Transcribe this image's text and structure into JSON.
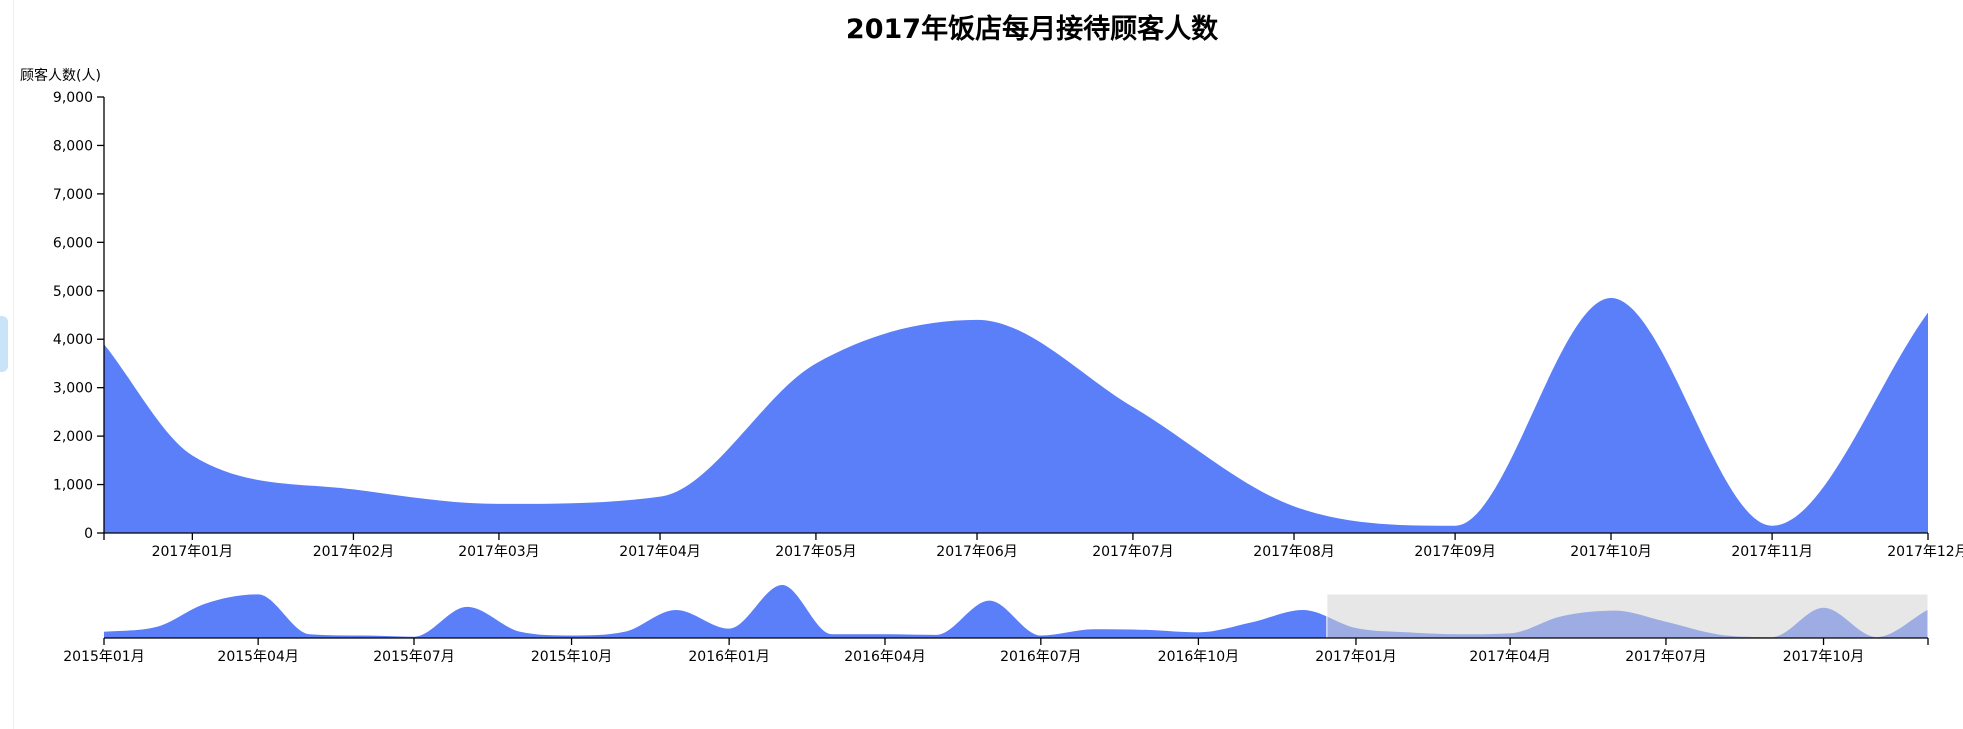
{
  "colors": {
    "area": "#5b7ff8",
    "brush": "#d3d3d3",
    "axis": "#000000"
  },
  "chart_data": [
    {
      "type": "area",
      "title": "2017年饭店每月接待顾客人数",
      "ylabel": "顾客人数(人)",
      "xlabel": "",
      "ylim": [
        0,
        9000
      ],
      "y_ticks": [
        "0",
        "1,000",
        "2,000",
        "3,000",
        "4,000",
        "5,000",
        "6,000",
        "7,000",
        "8,000",
        "9,000"
      ],
      "y_tick_values": [
        0,
        1000,
        2000,
        3000,
        4000,
        5000,
        6000,
        7000,
        8000,
        9000
      ],
      "x_range": [
        "2016-12-15",
        "2017-12-01"
      ],
      "x_ticks": [
        "2017年01月",
        "2017年02月",
        "2017年03月",
        "2017年04月",
        "2017年05月",
        "2017年06月",
        "2017年07月",
        "2017年08月",
        "2017年09月",
        "2017年10月",
        "2017年11月",
        "2017年12月"
      ],
      "x_tick_dates": [
        "2017-01-01",
        "2017-02-01",
        "2017-03-01",
        "2017-04-01",
        "2017-05-01",
        "2017-06-01",
        "2017-07-01",
        "2017-08-01",
        "2017-09-01",
        "2017-10-01",
        "2017-11-01",
        "2017-12-01"
      ],
      "series": [
        {
          "x": [
            "2016-12-15",
            "2017-01-01",
            "2017-02-01",
            "2017-03-01",
            "2017-04-01",
            "2017-05-01",
            "2017-06-01",
            "2017-07-01",
            "2017-08-01",
            "2017-09-01",
            "2017-10-01",
            "2017-11-01",
            "2017-12-01"
          ],
          "values": [
            3900,
            1600,
            900,
            600,
            750,
            3500,
            4400,
            2600,
            550,
            150,
            4850,
            150,
            4550
          ]
        }
      ]
    },
    {
      "type": "area",
      "title": "",
      "xlabel": "",
      "ylabel": "",
      "x_range": [
        "2015-01-01",
        "2017-12-01"
      ],
      "x_ticks": [
        "2015年01月",
        "2015年04月",
        "2015年07月",
        "2015年10月",
        "2016年01月",
        "2016年04月",
        "2016年07月",
        "2016年10月",
        "2017年01月",
        "2017年04月",
        "2017年07月",
        "2017年10月"
      ],
      "x_tick_dates": [
        "2015-01-01",
        "2015-04-01",
        "2015-07-01",
        "2015-10-01",
        "2016-01-01",
        "2016-04-01",
        "2016-07-01",
        "2016-10-01",
        "2017-01-01",
        "2017-04-01",
        "2017-07-01",
        "2017-10-01"
      ],
      "brush_range": [
        "2016-12-15",
        "2017-12-01"
      ],
      "series": [
        {
          "x": [
            "2015-01-01",
            "2015-02-01",
            "2015-03-01",
            "2015-04-01",
            "2015-05-01",
            "2015-06-01",
            "2015-07-01",
            "2015-08-01",
            "2015-09-01",
            "2015-10-01",
            "2015-11-01",
            "2015-12-01",
            "2016-01-01",
            "2016-02-01",
            "2016-03-01",
            "2016-04-01",
            "2016-05-01",
            "2016-06-01",
            "2016-07-01",
            "2016-08-01",
            "2016-09-01",
            "2016-10-01",
            "2016-11-01",
            "2016-12-01",
            "2017-01-01",
            "2017-02-01",
            "2017-03-01",
            "2017-04-01",
            "2017-05-01",
            "2017-06-01",
            "2017-07-01",
            "2017-08-01",
            "2017-09-01",
            "2017-10-01",
            "2017-11-01",
            "2017-12-01"
          ],
          "values": [
            1000,
            1800,
            5500,
            7000,
            600,
            400,
            200,
            5000,
            1000,
            400,
            1000,
            4500,
            1500,
            8500,
            600,
            600,
            500,
            6000,
            400,
            1400,
            1300,
            900,
            2500,
            4500,
            1600,
            900,
            600,
            750,
            3500,
            4400,
            2600,
            550,
            150,
            4850,
            150,
            4550
          ]
        }
      ]
    }
  ]
}
